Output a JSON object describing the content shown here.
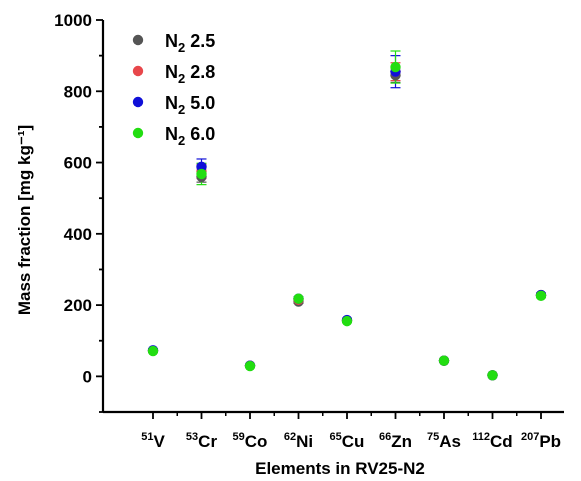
{
  "chart_data": {
    "type": "scatter",
    "xlabel": "Elements in RV25-N2",
    "ylabel": "Mass fraction [mg kg⁻¹]",
    "ylim": [
      -100,
      1000
    ],
    "yticks": [
      "0",
      "200",
      "400",
      "600",
      "800",
      "1000"
    ],
    "categories": [
      {
        "mass": "51",
        "symbol": "V"
      },
      {
        "mass": "53",
        "symbol": "Cr"
      },
      {
        "mass": "59",
        "symbol": "Co"
      },
      {
        "mass": "62",
        "symbol": "Ni"
      },
      {
        "mass": "65",
        "symbol": "Cu"
      },
      {
        "mass": "66",
        "symbol": "Zn"
      },
      {
        "mass": "75",
        "symbol": "As"
      },
      {
        "mass": "112",
        "symbol": "Cd"
      },
      {
        "mass": "207",
        "symbol": "Pb"
      }
    ],
    "legend_position": "top-left",
    "series": [
      {
        "name_base": "N",
        "name_sub": "2",
        "name_value": "2.5",
        "color": "#555555",
        "values": [
          72,
          560,
          30,
          210,
          157,
          845,
          44,
          3,
          228
        ],
        "errors": [
          4,
          15,
          2,
          5,
          4,
          20,
          2,
          1,
          5
        ]
      },
      {
        "name_base": "N",
        "name_sub": "2",
        "name_value": "2.8",
        "color": "#e8474b",
        "values": [
          72,
          575,
          30,
          215,
          157,
          855,
          44,
          3,
          228
        ],
        "errors": [
          4,
          20,
          2,
          5,
          4,
          25,
          2,
          1,
          5
        ]
      },
      {
        "name_base": "N",
        "name_sub": "2",
        "name_value": "5.0",
        "color": "#1010d8",
        "values": [
          73,
          588,
          30,
          218,
          158,
          855,
          44,
          3,
          228
        ],
        "errors": [
          4,
          22,
          2,
          5,
          5,
          45,
          2,
          1,
          6
        ]
      },
      {
        "name_base": "N",
        "name_sub": "2",
        "name_value": "6.0",
        "color": "#22dd11",
        "values": [
          71,
          568,
          29,
          218,
          155,
          868,
          44,
          3,
          226
        ],
        "errors": [
          4,
          30,
          2,
          5,
          4,
          45,
          2,
          1,
          5
        ]
      }
    ]
  }
}
